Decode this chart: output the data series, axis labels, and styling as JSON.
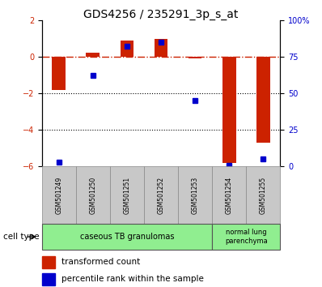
{
  "title": "GDS4256 / 235291_3p_s_at",
  "samples": [
    "GSM501249",
    "GSM501250",
    "GSM501251",
    "GSM501252",
    "GSM501253",
    "GSM501254",
    "GSM501255"
  ],
  "transformed_count": [
    -1.8,
    0.2,
    0.9,
    0.95,
    -0.1,
    -5.8,
    -4.7
  ],
  "percentile_rank": [
    3,
    62,
    82,
    85,
    45,
    1,
    5
  ],
  "ylim_left": [
    -6,
    2
  ],
  "ylim_right": [
    0,
    100
  ],
  "yticks_left": [
    -6,
    -4,
    -2,
    0,
    2
  ],
  "yticks_right": [
    0,
    25,
    50,
    75,
    100
  ],
  "ytick_labels_right": [
    "0",
    "25",
    "50",
    "75",
    "100%"
  ],
  "bar_color_red": "#CC2200",
  "bar_color_blue": "#0000CC",
  "bg_sample_row": "#C8C8C8",
  "group1_label": "caseous TB granulomas",
  "group2_label": "normal lung\nparenchyma",
  "group_color": "#90EE90",
  "group1_indices": [
    0,
    1,
    2,
    3,
    4
  ],
  "group2_indices": [
    5,
    6
  ],
  "legend_red_label": "transformed count",
  "legend_blue_label": "percentile rank within the sample",
  "cell_type_label": "cell type",
  "bar_width": 0.4,
  "title_fontsize": 10
}
